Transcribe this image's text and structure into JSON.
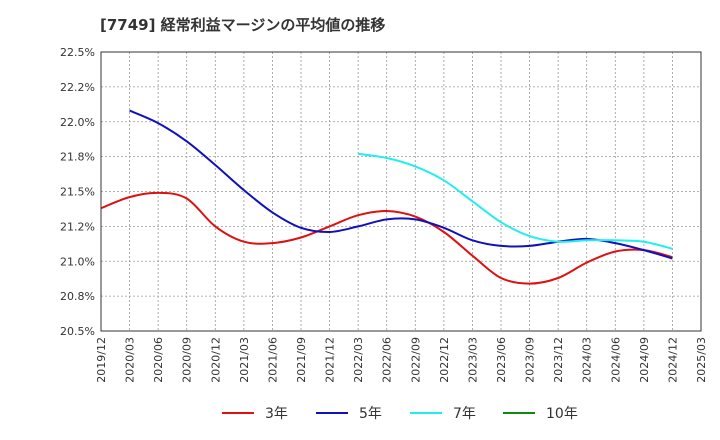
{
  "chart_data": {
    "type": "line",
    "title": "[7749]  経常利益マージンの平均値の推移",
    "xlabel": "",
    "ylabel": "",
    "x_ticks": [
      "2019/12",
      "2020/03",
      "2020/06",
      "2020/09",
      "2020/12",
      "2021/03",
      "2021/06",
      "2021/09",
      "2021/12",
      "2022/03",
      "2022/06",
      "2022/09",
      "2022/12",
      "2023/03",
      "2023/06",
      "2023/09",
      "2023/12",
      "2024/03",
      "2024/06",
      "2024/09",
      "2024/12",
      "2025/03"
    ],
    "y_ticks": [
      20.5,
      20.75,
      21.0,
      21.25,
      21.5,
      21.75,
      22.0,
      22.25,
      22.5
    ],
    "y_tick_labels": [
      "20.5%",
      "20.8%",
      "21.0%",
      "21.2%",
      "21.5%",
      "21.8%",
      "22.0%",
      "22.2%",
      "22.5%"
    ],
    "ylim": [
      20.5,
      22.5
    ],
    "grid": true,
    "legend_position": "bottom",
    "series": [
      {
        "name": "3年",
        "color": "#dd1111",
        "x": [
          "2019/12",
          "2020/03",
          "2020/06",
          "2020/09",
          "2020/12",
          "2021/03",
          "2021/06",
          "2021/09",
          "2021/12",
          "2022/03",
          "2022/06",
          "2022/09",
          "2022/12",
          "2023/03",
          "2023/06",
          "2023/09",
          "2023/12",
          "2024/03",
          "2024/06",
          "2024/09",
          "2024/12"
        ],
        "values": [
          21.38,
          21.46,
          21.49,
          21.45,
          21.25,
          21.14,
          21.13,
          21.17,
          21.25,
          21.33,
          21.36,
          21.32,
          21.21,
          21.04,
          20.88,
          20.84,
          20.88,
          20.99,
          21.07,
          21.08,
          21.03
        ]
      },
      {
        "name": "5年",
        "color": "#1111bb",
        "x": [
          "2020/03",
          "2020/06",
          "2020/09",
          "2020/12",
          "2021/03",
          "2021/06",
          "2021/09",
          "2021/12",
          "2022/03",
          "2022/06",
          "2022/09",
          "2022/12",
          "2023/03",
          "2023/06",
          "2023/09",
          "2023/12",
          "2024/03",
          "2024/06",
          "2024/09",
          "2024/12"
        ],
        "values": [
          22.08,
          21.99,
          21.86,
          21.69,
          21.51,
          21.35,
          21.24,
          21.21,
          21.25,
          21.3,
          21.3,
          21.24,
          21.15,
          21.11,
          21.11,
          21.14,
          21.16,
          21.13,
          21.08,
          21.02
        ]
      },
      {
        "name": "7年",
        "color": "#22eeee",
        "x": [
          "2022/03",
          "2022/06",
          "2022/09",
          "2022/12",
          "2023/03",
          "2023/06",
          "2023/09",
          "2023/12",
          "2024/03",
          "2024/06",
          "2024/09",
          "2024/12"
        ],
        "values": [
          21.77,
          21.74,
          21.68,
          21.58,
          21.43,
          21.28,
          21.18,
          21.14,
          21.15,
          21.15,
          21.14,
          21.09
        ]
      },
      {
        "name": "10年",
        "color": "#118811",
        "x": [],
        "values": []
      }
    ]
  }
}
